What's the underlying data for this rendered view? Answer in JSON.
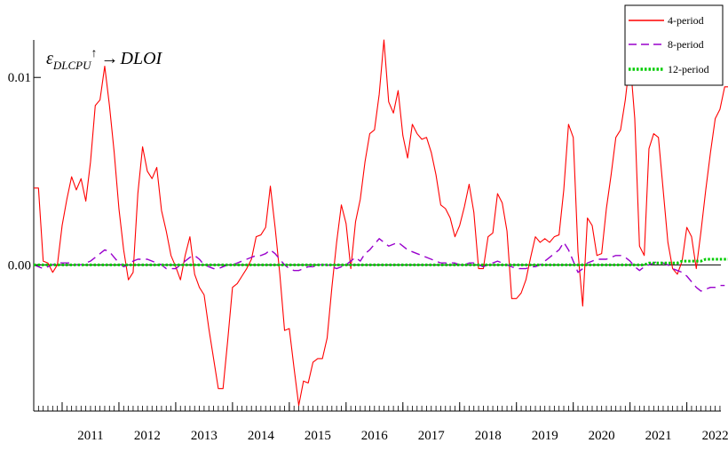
{
  "chart_data": {
    "type": "line",
    "title": {
      "symbol": "ε",
      "subscript": "DLCPU",
      "superscript": "↑",
      "arrow": "→",
      "target": "DLOI"
    },
    "xlabel": "",
    "ylabel": "",
    "x_start": 2010.5,
    "x_step": 0.0833333,
    "xlim": [
      2010.5,
      2022.6
    ],
    "ylim": [
      -0.0078,
      0.012
    ],
    "x_ticks": [
      {
        "label": "2011",
        "value": 2011.0
      },
      {
        "label": "2012",
        "value": 2012.0
      },
      {
        "label": "2013",
        "value": 2013.0
      },
      {
        "label": "2014",
        "value": 2014.0
      },
      {
        "label": "2015",
        "value": 2015.0
      },
      {
        "label": "2016",
        "value": 2016.0
      },
      {
        "label": "2017",
        "value": 2017.0
      },
      {
        "label": "2018",
        "value": 2018.0
      },
      {
        "label": "2019",
        "value": 2019.0
      },
      {
        "label": "2020",
        "value": 2020.0
      },
      {
        "label": "2021",
        "value": 2021.0
      },
      {
        "label": "2022",
        "value": 2022.0
      }
    ],
    "y_ticks": [
      {
        "label": "0.01",
        "value": 0.01
      },
      {
        "label": "0.00",
        "value": 0.0
      }
    ],
    "zero_line": 0.0,
    "grid": false,
    "legend_position": "top-right",
    "series": [
      {
        "name": "4-period",
        "color": "#ff0000",
        "dash": "solid",
        "values": [
          0.0041,
          0.0041,
          0.0002,
          0.0001,
          -0.0004,
          0.0,
          0.0021,
          0.0035,
          0.0047,
          0.004,
          0.0046,
          0.0034,
          0.0055,
          0.0085,
          0.0088,
          0.0106,
          0.0085,
          0.006,
          0.003,
          0.0008,
          -0.0008,
          -0.0004,
          0.0038,
          0.0063,
          0.005,
          0.0046,
          0.0052,
          0.0029,
          0.0018,
          0.0005,
          -0.0001,
          -0.0008,
          0.0005,
          0.0015,
          -0.0005,
          -0.0012,
          -0.0016,
          -0.0034,
          -0.005,
          -0.0066,
          -0.0066,
          -0.004,
          -0.0012,
          -0.001,
          -0.0006,
          -0.0002,
          0.0003,
          0.0015,
          0.0016,
          0.002,
          0.0042,
          0.002,
          -0.0005,
          -0.0035,
          -0.0034,
          -0.0055,
          -0.0075,
          -0.0062,
          -0.0063,
          -0.0052,
          -0.005,
          -0.005,
          -0.0039,
          -0.0012,
          0.0012,
          0.0032,
          0.0022,
          -0.0002,
          0.0023,
          0.0035,
          0.0055,
          0.007,
          0.0072,
          0.0091,
          0.012,
          0.0087,
          0.0081,
          0.0093,
          0.0069,
          0.0057,
          0.0075,
          0.007,
          0.0067,
          0.0068,
          0.006,
          0.0048,
          0.0032,
          0.003,
          0.0025,
          0.0015,
          0.0021,
          0.0031,
          0.0043,
          0.0028,
          -0.0002,
          -0.0002,
          0.0015,
          0.0017,
          0.0038,
          0.0033,
          0.0018,
          -0.0018,
          -0.0018,
          -0.0015,
          -0.0008,
          0.0004,
          0.0015,
          0.0012,
          0.0014,
          0.0012,
          0.0015,
          0.0016,
          0.004,
          0.0075,
          0.0068,
          0.0007,
          -0.0022,
          0.0025,
          0.0021,
          0.0005,
          0.0006,
          0.003,
          0.0048,
          0.0068,
          0.0072,
          0.0088,
          0.011,
          0.0078,
          0.001,
          0.0005,
          0.0062,
          0.007,
          0.0068,
          0.004,
          0.0012,
          -0.0002,
          -0.0005,
          0.0002,
          0.002,
          0.0015,
          -0.0002,
          0.0018,
          0.004,
          0.006,
          0.0078,
          0.0083,
          0.0095,
          0.0095
        ]
      },
      {
        "name": "8-period",
        "color": "#9900cc",
        "dash": "long-dash",
        "values": [
          0.0,
          -0.0001,
          -0.0002,
          -0.0001,
          0.0,
          0.0001,
          0.0001,
          0.0001,
          0.0001,
          0.0,
          0.0,
          0.0001,
          0.0002,
          0.0004,
          0.0006,
          0.0008,
          0.0007,
          0.0004,
          0.0001,
          -0.0001,
          0.0,
          0.0002,
          0.0003,
          0.0003,
          0.0003,
          0.0002,
          0.0001,
          0.0,
          -0.0002,
          -0.0002,
          -0.0002,
          0.0,
          0.0002,
          0.0004,
          0.0005,
          0.0003,
          0.0,
          -0.0001,
          -0.0002,
          -0.0002,
          -0.0001,
          0.0,
          0.0,
          0.0001,
          0.0002,
          0.0003,
          0.0004,
          0.0005,
          0.0005,
          0.0006,
          0.0008,
          0.0006,
          0.0003,
          0.0,
          -0.0002,
          -0.0003,
          -0.0003,
          -0.0002,
          -0.0001,
          -0.0001,
          0.0,
          0.0,
          0.0,
          -0.0001,
          -0.0002,
          -0.0001,
          0.0,
          0.0002,
          0.0004,
          0.0002,
          0.0006,
          0.0008,
          0.0011,
          0.0014,
          0.0012,
          0.001,
          0.0011,
          0.0012,
          0.001,
          0.0008,
          0.0007,
          0.0006,
          0.0005,
          0.0004,
          0.0003,
          0.0002,
          0.0001,
          0.0001,
          0.0001,
          0.0001,
          0.0,
          0.0,
          0.0001,
          0.0001,
          0.0,
          -0.0001,
          0.0,
          0.0001,
          0.0002,
          0.0001,
          0.0,
          -0.0001,
          -0.0002,
          -0.0002,
          -0.0002,
          -0.0001,
          -0.0001,
          0.0,
          0.0002,
          0.0004,
          0.0006,
          0.0008,
          0.0012,
          0.0008,
          0.0002,
          -0.0004,
          -0.0002,
          0.0001,
          0.0002,
          0.0003,
          0.0003,
          0.0003,
          0.0004,
          0.0005,
          0.0005,
          0.0004,
          0.0002,
          -0.0001,
          -0.0003,
          -0.0001,
          0.0,
          0.0001,
          0.0002,
          0.0001,
          0.0,
          -0.0002,
          -0.0003,
          -0.0004,
          -0.0006,
          -0.0009,
          -0.0012,
          -0.0014,
          -0.0013,
          -0.0012,
          -0.0012,
          -0.0011,
          -0.0011
        ]
      },
      {
        "name": "12-period",
        "color": "#00cc00",
        "dash": "dotted",
        "values": [
          0.0,
          0.0,
          0.0,
          0.0,
          0.0,
          0.0,
          0.0,
          0.0,
          0.0,
          0.0,
          0.0,
          0.0,
          0.0,
          0.0,
          0.0,
          0.0,
          0.0,
          0.0,
          0.0,
          0.0,
          0.0,
          0.0,
          0.0,
          0.0,
          0.0,
          0.0,
          0.0,
          0.0,
          0.0,
          0.0,
          0.0,
          0.0,
          0.0,
          0.0,
          0.0,
          0.0,
          0.0,
          0.0,
          0.0,
          0.0,
          0.0,
          0.0,
          0.0,
          0.0,
          0.0,
          0.0,
          0.0,
          0.0,
          0.0,
          0.0,
          0.0,
          0.0,
          0.0,
          0.0,
          0.0,
          0.0,
          0.0,
          0.0,
          0.0,
          0.0,
          0.0,
          0.0,
          0.0,
          0.0,
          0.0,
          0.0,
          0.0,
          0.0,
          0.0,
          0.0,
          0.0,
          0.0,
          0.0,
          0.0,
          0.0,
          0.0,
          0.0,
          0.0,
          0.0,
          0.0,
          0.0,
          0.0,
          0.0,
          0.0,
          0.0,
          0.0,
          0.0,
          0.0,
          0.0,
          0.0,
          0.0,
          0.0,
          0.0,
          0.0,
          0.0,
          0.0,
          0.0,
          0.0,
          0.0,
          0.0,
          0.0,
          0.0,
          0.0,
          0.0,
          0.0,
          0.0,
          0.0,
          0.0,
          0.0,
          0.0,
          0.0,
          0.0,
          0.0,
          0.0,
          0.0,
          0.0,
          0.0,
          0.0,
          0.0,
          0.0,
          0.0,
          0.0,
          0.0,
          0.0,
          0.0,
          0.0,
          0.0,
          0.0,
          0.0,
          0.0,
          0.0001,
          0.0001,
          0.0001,
          0.0001,
          0.0001,
          0.0001,
          0.0001,
          0.0002,
          0.0002,
          0.0002,
          0.0002,
          0.0002,
          0.0003,
          0.0003,
          0.0003,
          0.0003,
          0.0003,
          0.0003
        ]
      }
    ]
  }
}
